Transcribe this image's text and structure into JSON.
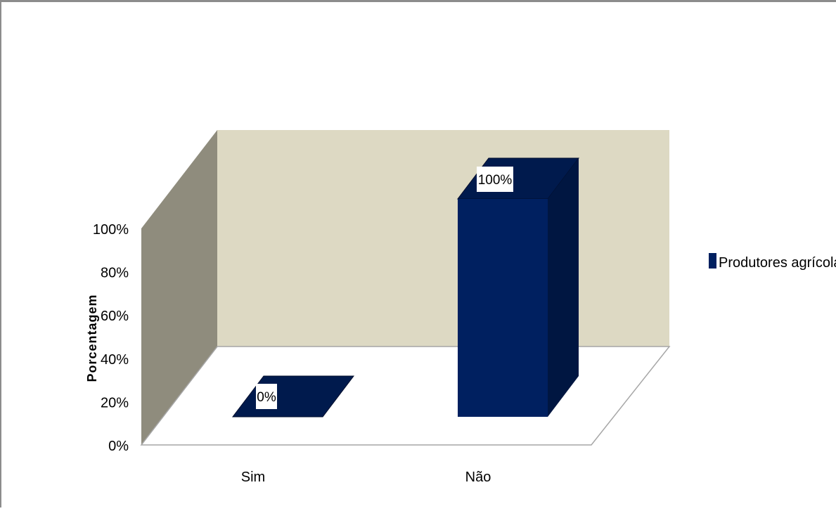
{
  "chart_data": {
    "type": "bar",
    "title": "",
    "xlabel": "",
    "ylabel": "Porcentagem",
    "categories": [
      "Sim",
      "Não"
    ],
    "series": [
      {
        "name": "Produtores agrícolas",
        "values": [
          0,
          100
        ],
        "color": "#002060"
      }
    ],
    "data_labels": [
      "0%",
      "100%"
    ],
    "y_ticks": [
      "0%",
      "20%",
      "40%",
      "60%",
      "80%",
      "100%"
    ],
    "ylim": [
      0,
      100
    ],
    "legend_position": "right",
    "grid": false,
    "style": "3d-column",
    "colors": {
      "back_wall": "#ddd9c3",
      "side_wall": "#8f8c7d",
      "floor": "#ffffff",
      "bar_front": "#002060",
      "bar_side": "#001641",
      "bar_top": "#001a4d"
    }
  }
}
